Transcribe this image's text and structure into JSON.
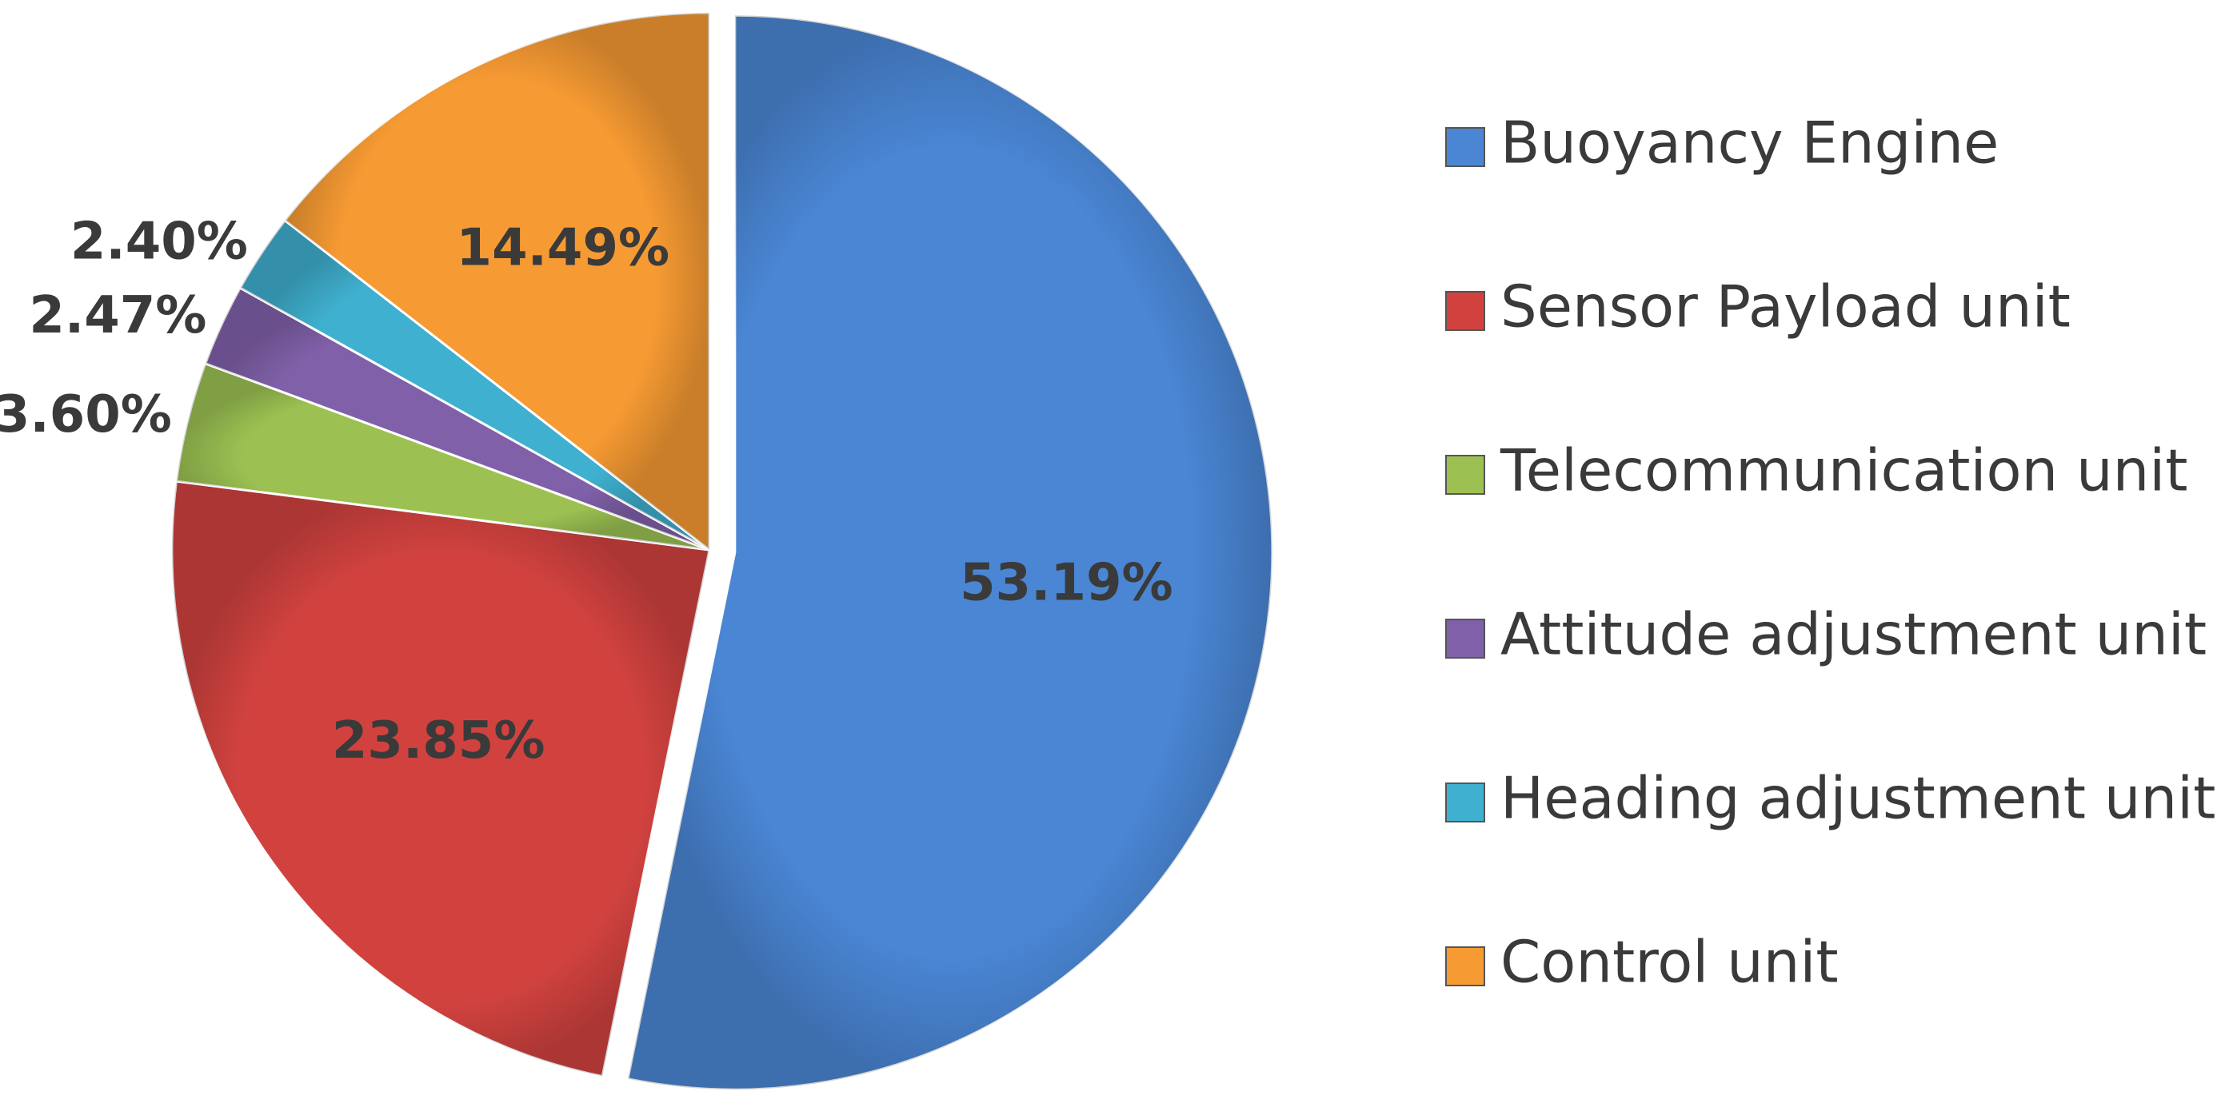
{
  "chart_data": {
    "type": "pie",
    "categories": [
      "Buoyancy Engine",
      "Sensor Payload unit",
      "Telecommunication unit",
      "Attitude adjustment unit",
      "Heading adjustment unit",
      "Control unit"
    ],
    "values": [
      53.19,
      23.85,
      3.6,
      2.47,
      2.4,
      14.49
    ],
    "value_labels": [
      "53.19%",
      "23.85%",
      "3.60%",
      "2.47%",
      "2.40%",
      "14.49%"
    ],
    "colors": [
      "#4a86d4",
      "#d1423f",
      "#9cc152",
      "#8060a9",
      "#3fb0cf",
      "#f69a33"
    ],
    "legend": "right"
  }
}
